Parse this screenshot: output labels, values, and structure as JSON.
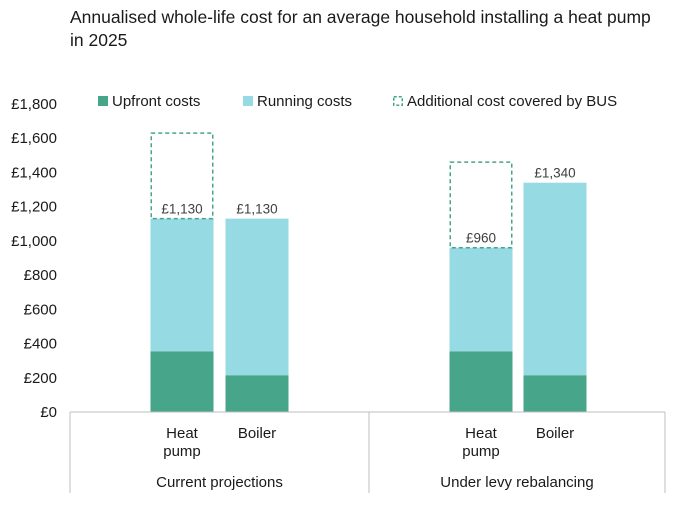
{
  "chart_data": {
    "type": "bar",
    "stacked": true,
    "title": "Annualised whole-life cost for an average household installing a heat pump in 2025",
    "xlabel": "",
    "ylabel": "",
    "ylim": [
      0,
      1800
    ],
    "y_ticks": [
      "£0",
      "£200",
      "£400",
      "£600",
      "£800",
      "£1,000",
      "£1,200",
      "£1,400",
      "£1,600",
      "£1,800"
    ],
    "y_tick_values": [
      0,
      200,
      400,
      600,
      800,
      1000,
      1200,
      1400,
      1600,
      1800
    ],
    "legend_position": "top",
    "groups": [
      {
        "name": "Current projections",
        "bars": [
          {
            "category": "Heat pump",
            "category_lines": [
              "Heat",
              "pump"
            ],
            "upfront": 355,
            "running": 775,
            "additional_bus": 500,
            "label": "£1,130"
          },
          {
            "category": "Boiler",
            "category_lines": [
              "Boiler"
            ],
            "upfront": 215,
            "running": 915,
            "additional_bus": 0,
            "label": "£1,130"
          }
        ]
      },
      {
        "name": "Under levy rebalancing",
        "bars": [
          {
            "category": "Heat pump",
            "category_lines": [
              "Heat",
              "pump"
            ],
            "upfront": 355,
            "running": 605,
            "additional_bus": 500,
            "label": "£960"
          },
          {
            "category": "Boiler",
            "category_lines": [
              "Boiler"
            ],
            "upfront": 215,
            "running": 1125,
            "additional_bus": 0,
            "label": "£1,340"
          }
        ]
      }
    ],
    "series": [
      {
        "key": "upfront",
        "name": "Upfront costs",
        "color": "#47a58a",
        "style": "solid"
      },
      {
        "key": "running",
        "name": "Running costs",
        "color": "#96dae3",
        "style": "solid"
      },
      {
        "key": "additional_bus",
        "name": "Additional cost covered by BUS",
        "color": "#47a58a",
        "style": "dashed"
      }
    ]
  }
}
